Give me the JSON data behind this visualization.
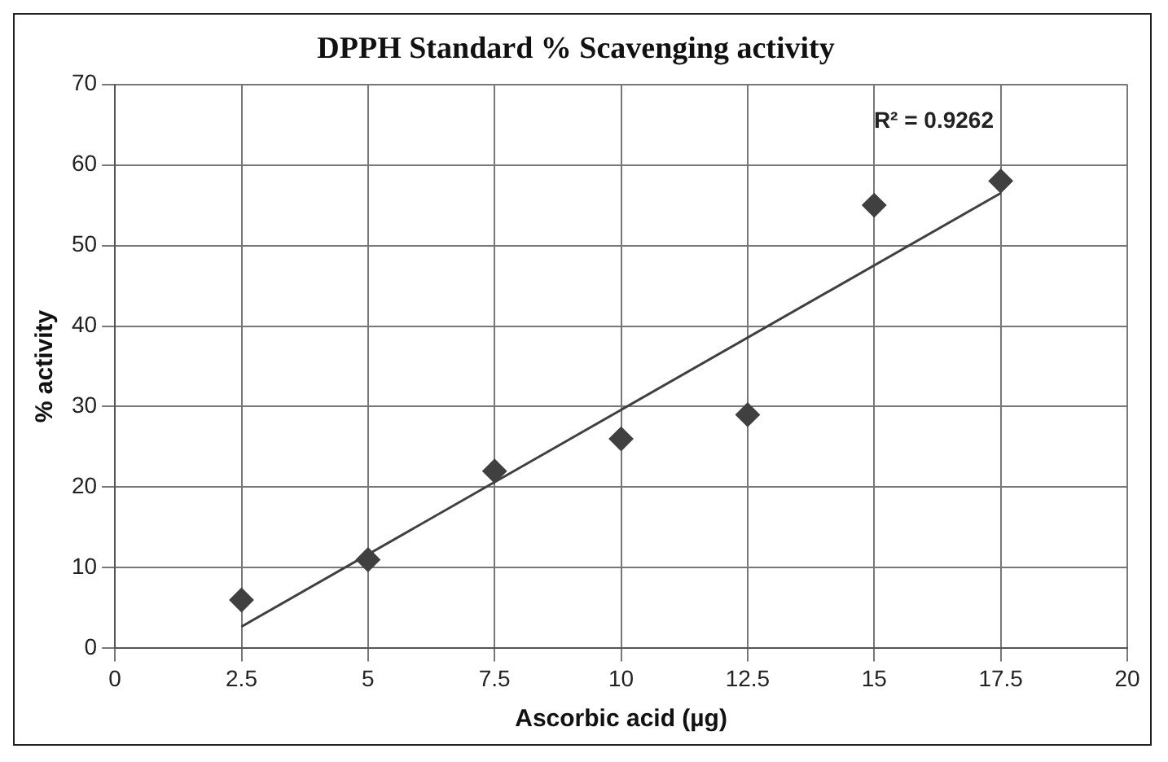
{
  "chart_data": {
    "type": "scatter",
    "title": "DPPH Standard % Scavenging activity",
    "xlabel": "Ascorbic acid (µg)",
    "ylabel": "% activity",
    "x": [
      2.5,
      5,
      7.5,
      10,
      12.5,
      15,
      17.5
    ],
    "series": [
      {
        "type": "scatter",
        "color": "#404040",
        "marker": "diamond",
        "values": [
          6,
          11,
          22,
          26,
          29,
          55,
          58
        ]
      },
      {
        "type": "line",
        "color": "#404040",
        "marker": "none",
        "x": [
          2.5,
          17.5
        ],
        "values": [
          2.7,
          56.5
        ]
      }
    ],
    "xlim": [
      0,
      20
    ],
    "xticks": [
      0,
      2.5,
      5,
      7.5,
      10,
      12.5,
      15,
      17.5,
      20
    ],
    "ylim": [
      0,
      70
    ],
    "yticks": [
      0,
      10,
      20,
      30,
      40,
      50,
      60,
      70
    ],
    "grid": true,
    "legend": false,
    "annotations": [
      "R² = 0.9262"
    ]
  }
}
